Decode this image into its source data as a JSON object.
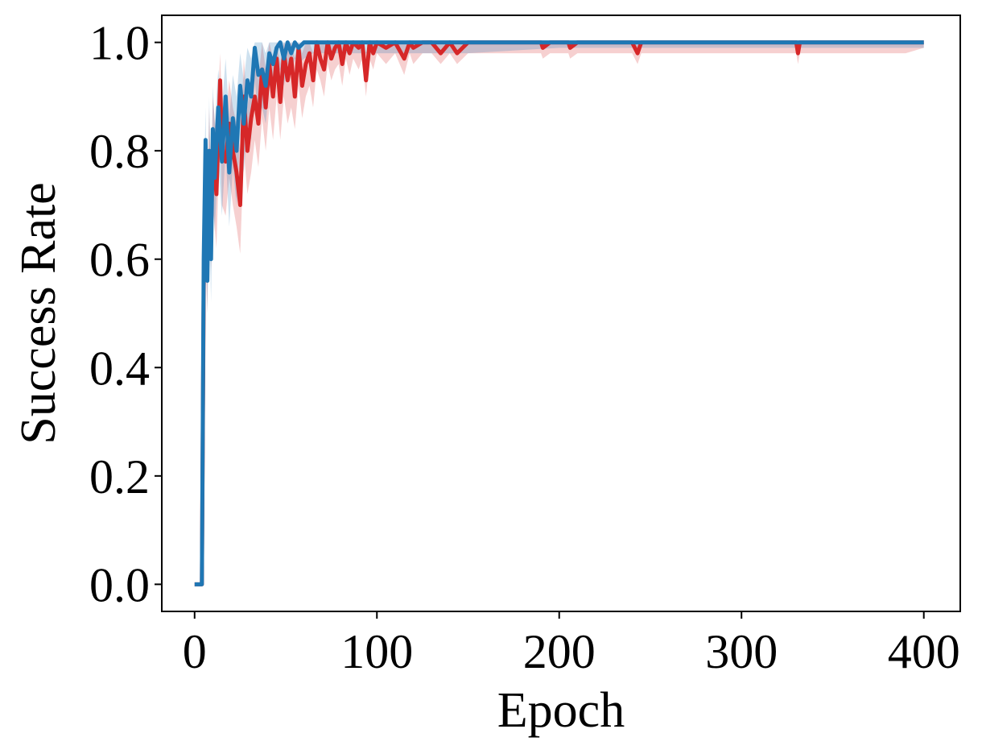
{
  "chart_data": {
    "type": "line",
    "title": "",
    "xlabel": "Epoch",
    "ylabel": "Success Rate",
    "xlim": [
      -18,
      420
    ],
    "ylim": [
      -0.05,
      1.05
    ],
    "xticks": [
      0,
      100,
      200,
      300,
      400
    ],
    "xtick_labels": [
      "0",
      "100",
      "200",
      "300",
      "400"
    ],
    "yticks": [
      0.0,
      0.2,
      0.4,
      0.6,
      0.8,
      1.0
    ],
    "ytick_labels": [
      "0.0",
      "0.2",
      "0.4",
      "0.6",
      "0.8",
      "1.0"
    ],
    "grid": false,
    "legend": "none",
    "series": [
      {
        "color": "#d62728",
        "x": [
          0,
          4,
          5,
          6,
          7,
          8,
          9,
          10,
          12,
          14,
          15,
          17,
          19,
          21,
          23,
          25,
          27,
          29,
          31,
          33,
          35,
          37,
          39,
          41,
          43,
          45,
          47,
          49,
          51,
          53,
          55,
          57,
          59,
          61,
          63,
          65,
          67,
          69,
          71,
          73,
          75,
          77,
          79,
          81,
          83,
          85,
          87,
          90,
          92,
          94,
          96,
          98,
          100,
          105,
          110,
          115,
          118,
          120,
          125,
          130,
          135,
          140,
          144,
          150,
          160,
          170,
          180,
          190,
          191,
          195,
          200,
          205,
          206,
          210,
          220,
          230,
          240,
          243,
          245,
          250,
          260,
          270,
          280,
          290,
          300,
          310,
          320,
          330,
          331,
          332,
          340,
          350,
          360,
          370,
          380,
          390,
          400
        ],
        "y": [
          0.0,
          0.0,
          0.55,
          0.7,
          0.6,
          0.8,
          0.65,
          0.8,
          0.72,
          0.93,
          0.8,
          0.78,
          0.85,
          0.8,
          0.76,
          0.7,
          0.9,
          0.8,
          0.86,
          0.9,
          0.85,
          0.95,
          0.88,
          0.96,
          0.9,
          0.97,
          0.89,
          0.98,
          0.93,
          0.97,
          0.9,
          0.99,
          0.92,
          0.96,
          0.98,
          0.93,
          1.0,
          0.97,
          0.95,
          1.0,
          0.97,
          0.99,
          1.0,
          0.96,
          1.0,
          0.98,
          1.0,
          0.99,
          1.0,
          0.93,
          1.0,
          0.98,
          1.0,
          0.99,
          1.0,
          0.97,
          1.0,
          0.99,
          1.0,
          1.0,
          0.98,
          1.0,
          0.98,
          1.0,
          1.0,
          1.0,
          1.0,
          1.0,
          0.99,
          1.0,
          1.0,
          1.0,
          0.99,
          1.0,
          1.0,
          1.0,
          1.0,
          0.98,
          1.0,
          1.0,
          1.0,
          1.0,
          1.0,
          1.0,
          1.0,
          1.0,
          1.0,
          1.0,
          0.98,
          1.0,
          1.0,
          1.0,
          1.0,
          1.0,
          1.0,
          1.0,
          1.0
        ],
        "band_low": [
          0.0,
          0.0,
          0.5,
          0.6,
          0.5,
          0.72,
          0.58,
          0.7,
          0.62,
          0.85,
          0.7,
          0.68,
          0.75,
          0.7,
          0.66,
          0.61,
          0.8,
          0.72,
          0.76,
          0.82,
          0.77,
          0.86,
          0.8,
          0.88,
          0.82,
          0.9,
          0.82,
          0.9,
          0.85,
          0.88,
          0.84,
          0.92,
          0.86,
          0.9,
          0.92,
          0.88,
          0.95,
          0.93,
          0.9,
          0.96,
          0.93,
          0.95,
          0.96,
          0.92,
          0.97,
          0.94,
          0.97,
          0.95,
          0.97,
          0.9,
          0.97,
          0.95,
          0.98,
          0.96,
          0.98,
          0.94,
          0.98,
          0.96,
          0.98,
          0.98,
          0.96,
          0.98,
          0.96,
          0.98,
          0.98,
          0.98,
          0.98,
          0.98,
          0.97,
          0.98,
          0.98,
          0.98,
          0.97,
          0.98,
          0.98,
          0.98,
          0.98,
          0.96,
          0.98,
          0.98,
          0.98,
          0.98,
          0.98,
          0.98,
          0.98,
          0.98,
          0.98,
          0.98,
          0.96,
          0.98,
          0.98,
          0.98,
          0.98,
          0.98,
          0.98,
          0.98,
          0.99
        ],
        "band_high": [
          0.0,
          0.0,
          0.65,
          0.8,
          0.72,
          0.88,
          0.75,
          0.9,
          0.82,
          0.98,
          0.88,
          0.86,
          0.93,
          0.88,
          0.85,
          0.8,
          0.97,
          0.88,
          0.94,
          0.97,
          0.93,
          1.0,
          0.95,
          1.0,
          0.97,
          1.0,
          0.96,
          1.0,
          0.99,
          1.0,
          0.97,
          1.0,
          0.98,
          1.0,
          1.0,
          0.98,
          1.0,
          1.0,
          1.0,
          1.0,
          1.0,
          1.0,
          1.0,
          1.0,
          1.0,
          1.0,
          1.0,
          1.0,
          1.0,
          0.98,
          1.0,
          1.0,
          1.0,
          1.0,
          1.0,
          1.0,
          1.0,
          1.0,
          1.0,
          1.0,
          1.0,
          1.0,
          1.0,
          1.0,
          1.0,
          1.0,
          1.0,
          1.0,
          1.0,
          1.0,
          1.0,
          1.0,
          1.0,
          1.0,
          1.0,
          1.0,
          1.0,
          1.0,
          1.0,
          1.0,
          1.0,
          1.0,
          1.0,
          1.0,
          1.0,
          1.0,
          1.0,
          1.0,
          1.0,
          1.0,
          1.0,
          1.0,
          1.0,
          1.0,
          1.0,
          1.0,
          1.0
        ]
      },
      {
        "color": "#1f77b4",
        "x": [
          0,
          4,
          5,
          6,
          7,
          8,
          9,
          10,
          11,
          13,
          15,
          17,
          19,
          21,
          23,
          25,
          27,
          29,
          31,
          33,
          35,
          37,
          39,
          41,
          43,
          45,
          47,
          49,
          51,
          53,
          55,
          57,
          60,
          65,
          70,
          80,
          90,
          100,
          110,
          120,
          130,
          140,
          150,
          200,
          250,
          300,
          350,
          400
        ],
        "y": [
          0.0,
          0.0,
          0.6,
          0.82,
          0.56,
          0.8,
          0.6,
          0.84,
          0.75,
          0.88,
          0.78,
          0.9,
          0.76,
          0.86,
          0.8,
          0.92,
          0.85,
          0.93,
          0.9,
          0.99,
          0.94,
          0.95,
          0.92,
          0.98,
          0.96,
          0.99,
          1.0,
          0.97,
          1.0,
          0.98,
          1.0,
          0.99,
          1.0,
          1.0,
          1.0,
          1.0,
          1.0,
          1.0,
          1.0,
          1.0,
          1.0,
          1.0,
          1.0,
          1.0,
          1.0,
          1.0,
          1.0,
          1.0
        ],
        "band_low": [
          0.0,
          0.0,
          0.5,
          0.74,
          0.5,
          0.68,
          0.52,
          0.74,
          0.65,
          0.78,
          0.68,
          0.8,
          0.66,
          0.77,
          0.7,
          0.83,
          0.76,
          0.85,
          0.82,
          0.93,
          0.86,
          0.88,
          0.85,
          0.92,
          0.9,
          0.94,
          0.95,
          0.92,
          0.96,
          0.94,
          0.97,
          0.96,
          0.97,
          0.98,
          0.98,
          0.98,
          0.98,
          0.98,
          0.98,
          0.98,
          0.98,
          0.98,
          0.98,
          0.99,
          0.99,
          0.99,
          0.99,
          0.99
        ],
        "band_high": [
          0.0,
          0.0,
          0.7,
          0.88,
          0.65,
          0.9,
          0.7,
          0.92,
          0.85,
          0.95,
          0.88,
          0.97,
          0.86,
          0.94,
          0.9,
          0.98,
          0.93,
          0.99,
          0.97,
          1.0,
          1.0,
          1.0,
          0.98,
          1.0,
          1.0,
          1.0,
          1.0,
          1.0,
          1.0,
          1.0,
          1.0,
          1.0,
          1.0,
          1.0,
          1.0,
          1.0,
          1.0,
          1.0,
          1.0,
          1.0,
          1.0,
          1.0,
          1.0,
          1.0,
          1.0,
          1.0,
          1.0,
          1.0
        ]
      }
    ]
  }
}
